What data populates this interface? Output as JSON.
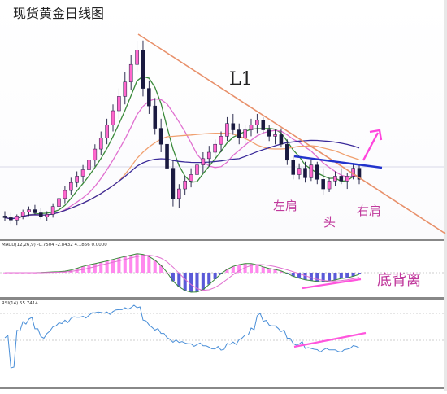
{
  "title": "现货黄金日线图",
  "annotations": {
    "l1": "L1",
    "left_shoulder": "左肩",
    "head": "头",
    "right_shoulder": "右肩",
    "bottom_divergence": "底背离"
  },
  "indicators": {
    "macd_label": "MACD(12,26,9) -0.7504 -2.8432 4.1856 0.0000",
    "rsi_label": "RSI(14) 55.7414"
  },
  "colors": {
    "background": "#ffffff",
    "bull_candle": "#ff66cc",
    "bear_candle": "#1a1a40",
    "ma_fast": "#3a8a3a",
    "ma_mid": "#e070d0",
    "ma_slow": "#f0a070",
    "ma_long": "#3a2a9a",
    "resistance_line": "#e8906a",
    "neckline": "#2233cc",
    "annotation": "#c0399c",
    "breakout_arrow": "#ff44dd",
    "rsi_line": "#4a8fd8",
    "macd_bars": "#ff88ee",
    "divergence_line": "#ff55dd"
  },
  "chart_data": [
    {
      "type": "candlestick",
      "title": "现货黄金日线图",
      "pattern": "head-and-shoulders bottom",
      "ma_lines": [
        "ma_fast",
        "ma_mid",
        "ma_slow",
        "ma_long"
      ],
      "grid": false,
      "candles": [
        [
          250,
          256,
          244,
          248
        ],
        [
          248,
          254,
          240,
          245
        ],
        [
          245,
          252,
          238,
          250
        ],
        [
          250,
          258,
          246,
          255
        ],
        [
          255,
          262,
          250,
          258
        ],
        [
          258,
          264,
          252,
          254
        ],
        [
          254,
          260,
          246,
          249
        ],
        [
          249,
          256,
          244,
          252
        ],
        [
          252,
          266,
          248,
          262
        ],
        [
          262,
          278,
          258,
          272
        ],
        [
          272,
          288,
          266,
          282
        ],
        [
          282,
          298,
          276,
          292
        ],
        [
          292,
          306,
          286,
          300
        ],
        [
          300,
          314,
          292,
          308
        ],
        [
          308,
          326,
          302,
          320
        ],
        [
          320,
          340,
          312,
          334
        ],
        [
          334,
          356,
          326,
          348
        ],
        [
          348,
          372,
          340,
          364
        ],
        [
          364,
          390,
          356,
          382
        ],
        [
          382,
          410,
          372,
          400
        ],
        [
          400,
          430,
          390,
          418
        ],
        [
          418,
          452,
          408,
          440
        ],
        [
          440,
          470,
          430,
          458
        ],
        [
          458,
          470,
          400,
          410
        ],
        [
          410,
          420,
          378,
          388
        ],
        [
          388,
          398,
          352,
          360
        ],
        [
          360,
          372,
          330,
          340
        ],
        [
          340,
          350,
          300,
          310
        ],
        [
          310,
          320,
          262,
          272
        ],
        [
          272,
          290,
          260,
          284
        ],
        [
          284,
          300,
          276,
          294
        ],
        [
          294,
          310,
          286,
          302
        ],
        [
          302,
          320,
          294,
          314
        ],
        [
          314,
          330,
          304,
          322
        ],
        [
          322,
          338,
          312,
          330
        ],
        [
          330,
          346,
          320,
          340
        ],
        [
          340,
          356,
          330,
          350
        ],
        [
          350,
          374,
          344,
          366
        ],
        [
          366,
          378,
          352,
          358
        ],
        [
          358,
          366,
          340,
          348
        ],
        [
          348,
          364,
          340,
          358
        ],
        [
          358,
          372,
          350,
          364
        ],
        [
          364,
          378,
          354,
          370
        ],
        [
          370,
          374,
          354,
          358
        ],
        [
          358,
          364,
          344,
          350
        ],
        [
          350,
          358,
          340,
          352
        ],
        [
          352,
          360,
          336,
          340
        ],
        [
          340,
          346,
          314,
          320
        ],
        [
          320,
          326,
          296,
          302
        ],
        [
          302,
          316,
          296,
          310
        ],
        [
          310,
          318,
          292,
          298
        ],
        [
          298,
          320,
          294,
          314
        ],
        [
          314,
          318,
          290,
          296
        ],
        [
          296,
          310,
          276,
          284
        ],
        [
          284,
          298,
          280,
          294
        ],
        [
          294,
          306,
          288,
          300
        ],
        [
          300,
          310,
          290,
          294
        ],
        [
          294,
          304,
          284,
          300
        ],
        [
          300,
          316,
          296,
          310
        ],
        [
          310,
          314,
          290,
          296
        ]
      ],
      "macd": {
        "label": "MACD(12,26,9)",
        "values": [
          -0.7504,
          -2.8432,
          4.1856,
          0.0
        ],
        "divergence": "bullish"
      },
      "rsi": {
        "label": "RSI(14)",
        "value": 55.7414,
        "divergence": "bullish"
      }
    }
  ]
}
